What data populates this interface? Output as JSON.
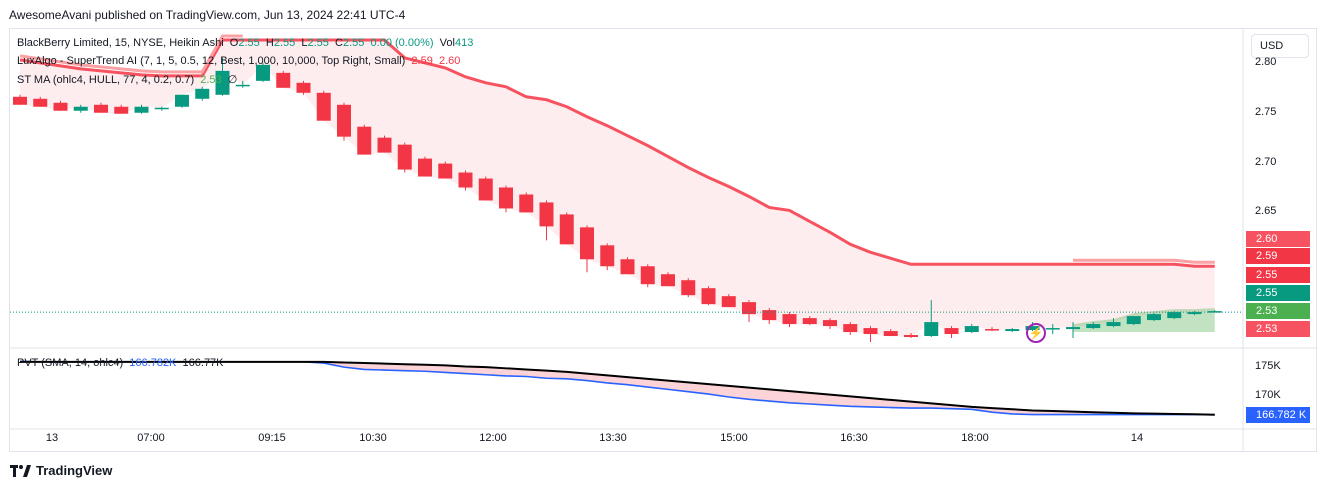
{
  "header": {
    "published": "AwesomeAvani published on TradingView.com, Jun 13, 2024 22:41 UTC-4"
  },
  "legend": {
    "symbol": "BlackBerry Limited, 15, NYSE, Heikin Ashi",
    "o_label": "O",
    "o": "2.55",
    "h_label": "H",
    "h": "2.55",
    "l_label": "L",
    "l": "2.55",
    "c_label": "C",
    "c": "2.55",
    "change": "0.00 (0.00%)",
    "vol_label": "Vol",
    "vol": "413",
    "luxalgo": "LuxAlgo - SuperTrend AI (7, 1, 5, 0.5, 12, Best, 1,000, 10,000, Top Right, Small)",
    "lux_v1": "2.59",
    "lux_v2": "2.60",
    "stma": "ST MA (ohlc4, HULL, 77, 4, 0.2, 0.7)",
    "stma_v": "2.53",
    "stma_sym": "∅",
    "pvt": "PVT (SMA, 14, ohlc4)",
    "pvt_v1": "166.782K",
    "pvt_v2": "166.77K"
  },
  "currency_button": "USD",
  "price_axis": [
    "2.80",
    "2.75",
    "2.70",
    "2.65"
  ],
  "pvt_axis": [
    "175K",
    "170K"
  ],
  "price_badges": [
    {
      "label": "2.60",
      "color": "#f7525f"
    },
    {
      "label": "2.59",
      "color": "#f23645"
    },
    {
      "label": "2.55",
      "color": "#f23645"
    },
    {
      "label": "2.55",
      "color": "#089981"
    },
    {
      "label": "2.53",
      "color": "#4caf50"
    },
    {
      "label": "2.53",
      "color": "#f7525f"
    }
  ],
  "pvt_badge": {
    "label": "166.782 K",
    "color": "#2962ff"
  },
  "time_axis": [
    "13",
    "07:00",
    "09:15",
    "10:30",
    "12:00",
    "13:30",
    "15:00",
    "16:30",
    "18:00",
    "14"
  ],
  "brand": "TradingView",
  "colors": {
    "up": "#089981",
    "down": "#f23645",
    "supertrend": "#f7525f",
    "pvt": "#2962ff",
    "pvt_signal": "#000000"
  },
  "chart_data": [
    {
      "type": "candlestick",
      "title": "BlackBerry Limited, 15, NYSE, Heikin Ashi",
      "ylim": [
        2.515,
        2.835
      ],
      "candles": [
        {
          "o": 2.766,
          "h": 2.768,
          "l": 2.758,
          "c": 2.758
        },
        {
          "o": 2.764,
          "h": 2.766,
          "l": 2.756,
          "c": 2.756
        },
        {
          "o": 2.76,
          "h": 2.762,
          "l": 2.752,
          "c": 2.752
        },
        {
          "o": 2.752,
          "h": 2.758,
          "l": 2.75,
          "c": 2.756
        },
        {
          "o": 2.758,
          "h": 2.76,
          "l": 2.75,
          "c": 2.75
        },
        {
          "o": 2.756,
          "h": 2.758,
          "l": 2.749,
          "c": 2.749
        },
        {
          "o": 2.75,
          "h": 2.758,
          "l": 2.749,
          "c": 2.756
        },
        {
          "o": 2.754,
          "h": 2.756,
          "l": 2.752,
          "c": 2.755
        },
        {
          "o": 2.756,
          "h": 2.768,
          "l": 2.755,
          "c": 2.768
        },
        {
          "o": 2.764,
          "h": 2.776,
          "l": 2.762,
          "c": 2.774
        },
        {
          "o": 2.768,
          "h": 2.805,
          "l": 2.767,
          "c": 2.792
        },
        {
          "o": 2.778,
          "h": 2.782,
          "l": 2.775,
          "c": 2.778
        },
        {
          "o": 2.782,
          "h": 2.8,
          "l": 2.781,
          "c": 2.798
        },
        {
          "o": 2.79,
          "h": 2.792,
          "l": 2.775,
          "c": 2.775
        },
        {
          "o": 2.78,
          "h": 2.782,
          "l": 2.768,
          "c": 2.77
        },
        {
          "o": 2.77,
          "h": 2.772,
          "l": 2.742,
          "c": 2.742
        },
        {
          "o": 2.758,
          "h": 2.76,
          "l": 2.722,
          "c": 2.726
        },
        {
          "o": 2.736,
          "h": 2.738,
          "l": 2.708,
          "c": 2.708
        },
        {
          "o": 2.725,
          "h": 2.727,
          "l": 2.71,
          "c": 2.71
        },
        {
          "o": 2.718,
          "h": 2.72,
          "l": 2.69,
          "c": 2.693
        },
        {
          "o": 2.704,
          "h": 2.706,
          "l": 2.686,
          "c": 2.686
        },
        {
          "o": 2.699,
          "h": 2.701,
          "l": 2.684,
          "c": 2.684
        },
        {
          "o": 2.69,
          "h": 2.692,
          "l": 2.672,
          "c": 2.675
        },
        {
          "o": 2.684,
          "h": 2.686,
          "l": 2.662,
          "c": 2.662
        },
        {
          "o": 2.675,
          "h": 2.677,
          "l": 2.65,
          "c": 2.654
        },
        {
          "o": 2.668,
          "h": 2.67,
          "l": 2.65,
          "c": 2.65
        },
        {
          "o": 2.66,
          "h": 2.662,
          "l": 2.622,
          "c": 2.636
        },
        {
          "o": 2.648,
          "h": 2.65,
          "l": 2.618,
          "c": 2.618
        },
        {
          "o": 2.635,
          "h": 2.637,
          "l": 2.59,
          "c": 2.603
        },
        {
          "o": 2.617,
          "h": 2.619,
          "l": 2.592,
          "c": 2.596
        },
        {
          "o": 2.603,
          "h": 2.605,
          "l": 2.588,
          "c": 2.588
        },
        {
          "o": 2.596,
          "h": 2.598,
          "l": 2.575,
          "c": 2.578
        },
        {
          "o": 2.588,
          "h": 2.59,
          "l": 2.576,
          "c": 2.576
        },
        {
          "o": 2.582,
          "h": 2.584,
          "l": 2.565,
          "c": 2.567
        },
        {
          "o": 2.574,
          "h": 2.576,
          "l": 2.557,
          "c": 2.558
        },
        {
          "o": 2.566,
          "h": 2.568,
          "l": 2.555,
          "c": 2.555
        },
        {
          "o": 2.56,
          "h": 2.562,
          "l": 2.54,
          "c": 2.548
        },
        {
          "o": 2.552,
          "h": 2.554,
          "l": 2.538,
          "c": 2.542
        },
        {
          "o": 2.548,
          "h": 2.55,
          "l": 2.535,
          "c": 2.538
        },
        {
          "o": 2.544,
          "h": 2.546,
          "l": 2.537,
          "c": 2.538
        },
        {
          "o": 2.542,
          "h": 2.544,
          "l": 2.533,
          "c": 2.536
        },
        {
          "o": 2.538,
          "h": 2.54,
          "l": 2.527,
          "c": 2.53
        },
        {
          "o": 2.534,
          "h": 2.536,
          "l": 2.52,
          "c": 2.528
        },
        {
          "o": 2.531,
          "h": 2.533,
          "l": 2.526,
          "c": 2.526
        },
        {
          "o": 2.527,
          "h": 2.529,
          "l": 2.524,
          "c": 2.525
        },
        {
          "o": 2.526,
          "h": 2.562,
          "l": 2.525,
          "c": 2.54
        },
        {
          "o": 2.534,
          "h": 2.536,
          "l": 2.524,
          "c": 2.528
        },
        {
          "o": 2.53,
          "h": 2.538,
          "l": 2.529,
          "c": 2.536
        },
        {
          "o": 2.533,
          "h": 2.535,
          "l": 2.531,
          "c": 2.532
        },
        {
          "o": 2.531,
          "h": 2.534,
          "l": 2.53,
          "c": 2.533
        },
        {
          "o": 2.532,
          "h": 2.54,
          "l": 2.531,
          "c": 2.536
        },
        {
          "o": 2.533,
          "h": 2.538,
          "l": 2.528,
          "c": 2.534
        },
        {
          "o": 2.533,
          "h": 2.54,
          "l": 2.524,
          "c": 2.535
        },
        {
          "o": 2.534,
          "h": 2.54,
          "l": 2.533,
          "c": 2.538
        },
        {
          "o": 2.536,
          "h": 2.544,
          "l": 2.535,
          "c": 2.54
        },
        {
          "o": 2.538,
          "h": 2.546,
          "l": 2.537,
          "c": 2.546
        },
        {
          "o": 2.542,
          "h": 2.549,
          "l": 2.541,
          "c": 2.548
        },
        {
          "o": 2.544,
          "h": 2.551,
          "l": 2.543,
          "c": 2.55
        },
        {
          "o": 2.548,
          "h": 2.551,
          "l": 2.547,
          "c": 2.55
        },
        {
          "o": 2.551,
          "h": 2.552,
          "l": 2.55,
          "c": 2.551
        }
      ],
      "supertrend": [
        2.803,
        2.8,
        2.797,
        2.794,
        2.792,
        2.79,
        2.788,
        2.787,
        2.787,
        2.787,
        2.823,
        2.823,
        2.823,
        2.823,
        2.823,
        2.823,
        2.823,
        2.823,
        2.823,
        2.805,
        2.8,
        2.795,
        2.786,
        2.78,
        2.776,
        2.766,
        2.763,
        2.756,
        2.746,
        2.737,
        2.727,
        2.717,
        2.706,
        2.695,
        2.685,
        2.676,
        2.666,
        2.655,
        2.652,
        2.641,
        2.63,
        2.618,
        2.61,
        2.604,
        2.598,
        2.598,
        2.598,
        2.598,
        2.598,
        2.598,
        2.598,
        2.598,
        2.598,
        2.598,
        2.598,
        2.598,
        2.598,
        2.598,
        2.596,
        2.596
      ],
      "supertrend_light_segments": [
        [
          0,
          11
        ],
        [
          52,
          59
        ]
      ],
      "current_price": 2.55
    },
    {
      "type": "line",
      "title": "PVT (SMA, 14, ohlc4)",
      "ylim": [
        164.5,
        178
      ],
      "series": [
        {
          "name": "PVT",
          "color": "#2962ff",
          "values": [
            175.9,
            175.8,
            175.8,
            175.8,
            175.8,
            175.8,
            175.8,
            175.8,
            175.8,
            175.8,
            175.8,
            175.8,
            175.8,
            175.8,
            175.8,
            175.6,
            174.9,
            174.5,
            174.4,
            174.3,
            174.2,
            174.0,
            173.8,
            173.6,
            173.4,
            173.3,
            173.0,
            172.9,
            172.6,
            172.2,
            171.9,
            171.5,
            171.1,
            170.7,
            170.3,
            169.8,
            169.4,
            169.1,
            168.8,
            168.6,
            168.4,
            168.2,
            168.1,
            168.0,
            167.9,
            167.9,
            167.8,
            167.7,
            167.2,
            166.9,
            166.8,
            166.8,
            166.8,
            166.8,
            166.8,
            166.8,
            166.8,
            166.8,
            166.8,
            166.78
          ]
        },
        {
          "name": "SMA",
          "color": "#000000",
          "values": [
            175.8,
            175.8,
            175.8,
            175.8,
            175.8,
            175.8,
            175.8,
            175.8,
            175.8,
            175.8,
            175.8,
            175.8,
            175.8,
            175.8,
            175.8,
            175.8,
            175.7,
            175.6,
            175.5,
            175.4,
            175.3,
            175.2,
            175.0,
            174.9,
            174.7,
            174.5,
            174.3,
            174.1,
            173.8,
            173.5,
            173.2,
            172.9,
            172.6,
            172.3,
            172.0,
            171.7,
            171.4,
            171.1,
            170.8,
            170.5,
            170.2,
            169.9,
            169.6,
            169.3,
            169.0,
            168.7,
            168.4,
            168.1,
            167.9,
            167.7,
            167.5,
            167.4,
            167.3,
            167.2,
            167.1,
            167.0,
            166.95,
            166.9,
            166.85,
            166.77
          ]
        }
      ]
    }
  ]
}
